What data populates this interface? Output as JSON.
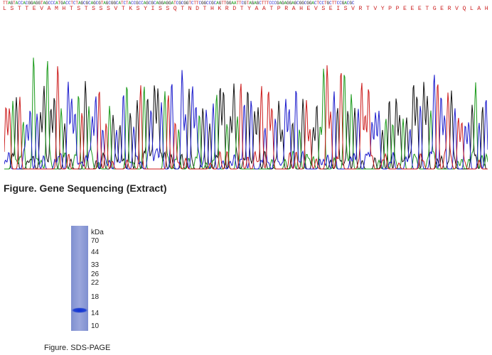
{
  "sequencing": {
    "bases": "TTAGTACCACGGAGGTAGCCCATGACCTCTAGCGCAGCGTAGCGGCATCTACCGCCAGCGCAGGAGGATCGCGGTCTTCGGCCGCAGTTGGAATTCGTAGAGCTTTCCCGAGAGGAGCGGCGGACTCCTGCTTCCGACGC",
    "amino_acids": "L S T T E V A M H T S T S S S V T K S Y I S S Q T N D T H K R D T Y A A T P R A H E V S E I S V R T V Y P P E E E T G E R V Q L A H H F S E P E",
    "caption": "Figure. Gene Sequencing (Extract)",
    "base_colors": {
      "A": "#1a9a1a",
      "C": "#1a1acc",
      "G": "#111111",
      "T": "#cc1a1a"
    }
  },
  "sds_page": {
    "unit_label": "kDa",
    "markers": [
      "70",
      "44",
      "33",
      "26",
      "22",
      "18",
      "14",
      "10"
    ],
    "caption": "Figure. SDS-PAGE",
    "lane_color": "#8c9ad6",
    "band_color": "#1f3fcf"
  }
}
